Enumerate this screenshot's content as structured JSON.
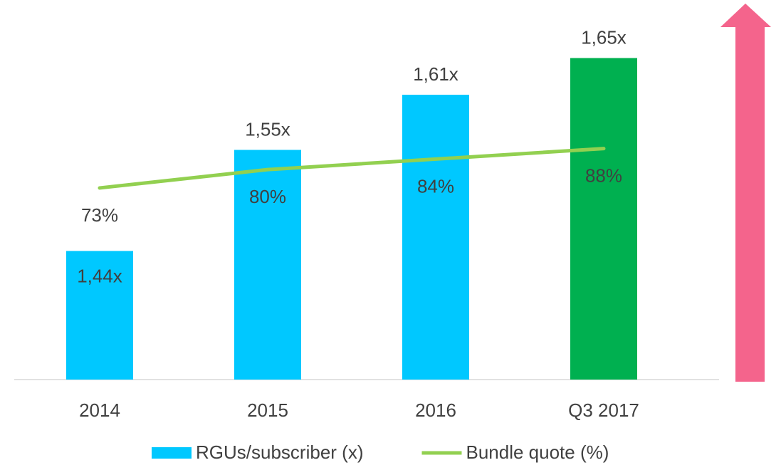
{
  "chart_data": {
    "type": "bar-line",
    "categories": [
      "2014",
      "2015",
      "2016",
      "Q3 2017"
    ],
    "series": [
      {
        "name": "RGUs/subscriber (x)",
        "type": "bar",
        "colors": [
          "#00c8ff",
          "#00c8ff",
          "#00c8ff",
          "#00b050"
        ],
        "color": "#00c8ff",
        "values": [
          1.44,
          1.55,
          1.61,
          1.65
        ],
        "value_labels": [
          "1,44x",
          "1,55x",
          "1,61x",
          "1,65x"
        ]
      },
      {
        "name": "Bundle quote (%)",
        "type": "line",
        "axis": "y2",
        "color": "#92d050",
        "values": [
          73,
          80,
          84,
          88
        ],
        "value_labels": [
          "73%",
          "80%",
          "84%",
          "88%"
        ]
      }
    ],
    "ylim": [
      1.3,
      1.7
    ],
    "y2lim": [
      0,
      140
    ],
    "legend": "bottom"
  }
}
